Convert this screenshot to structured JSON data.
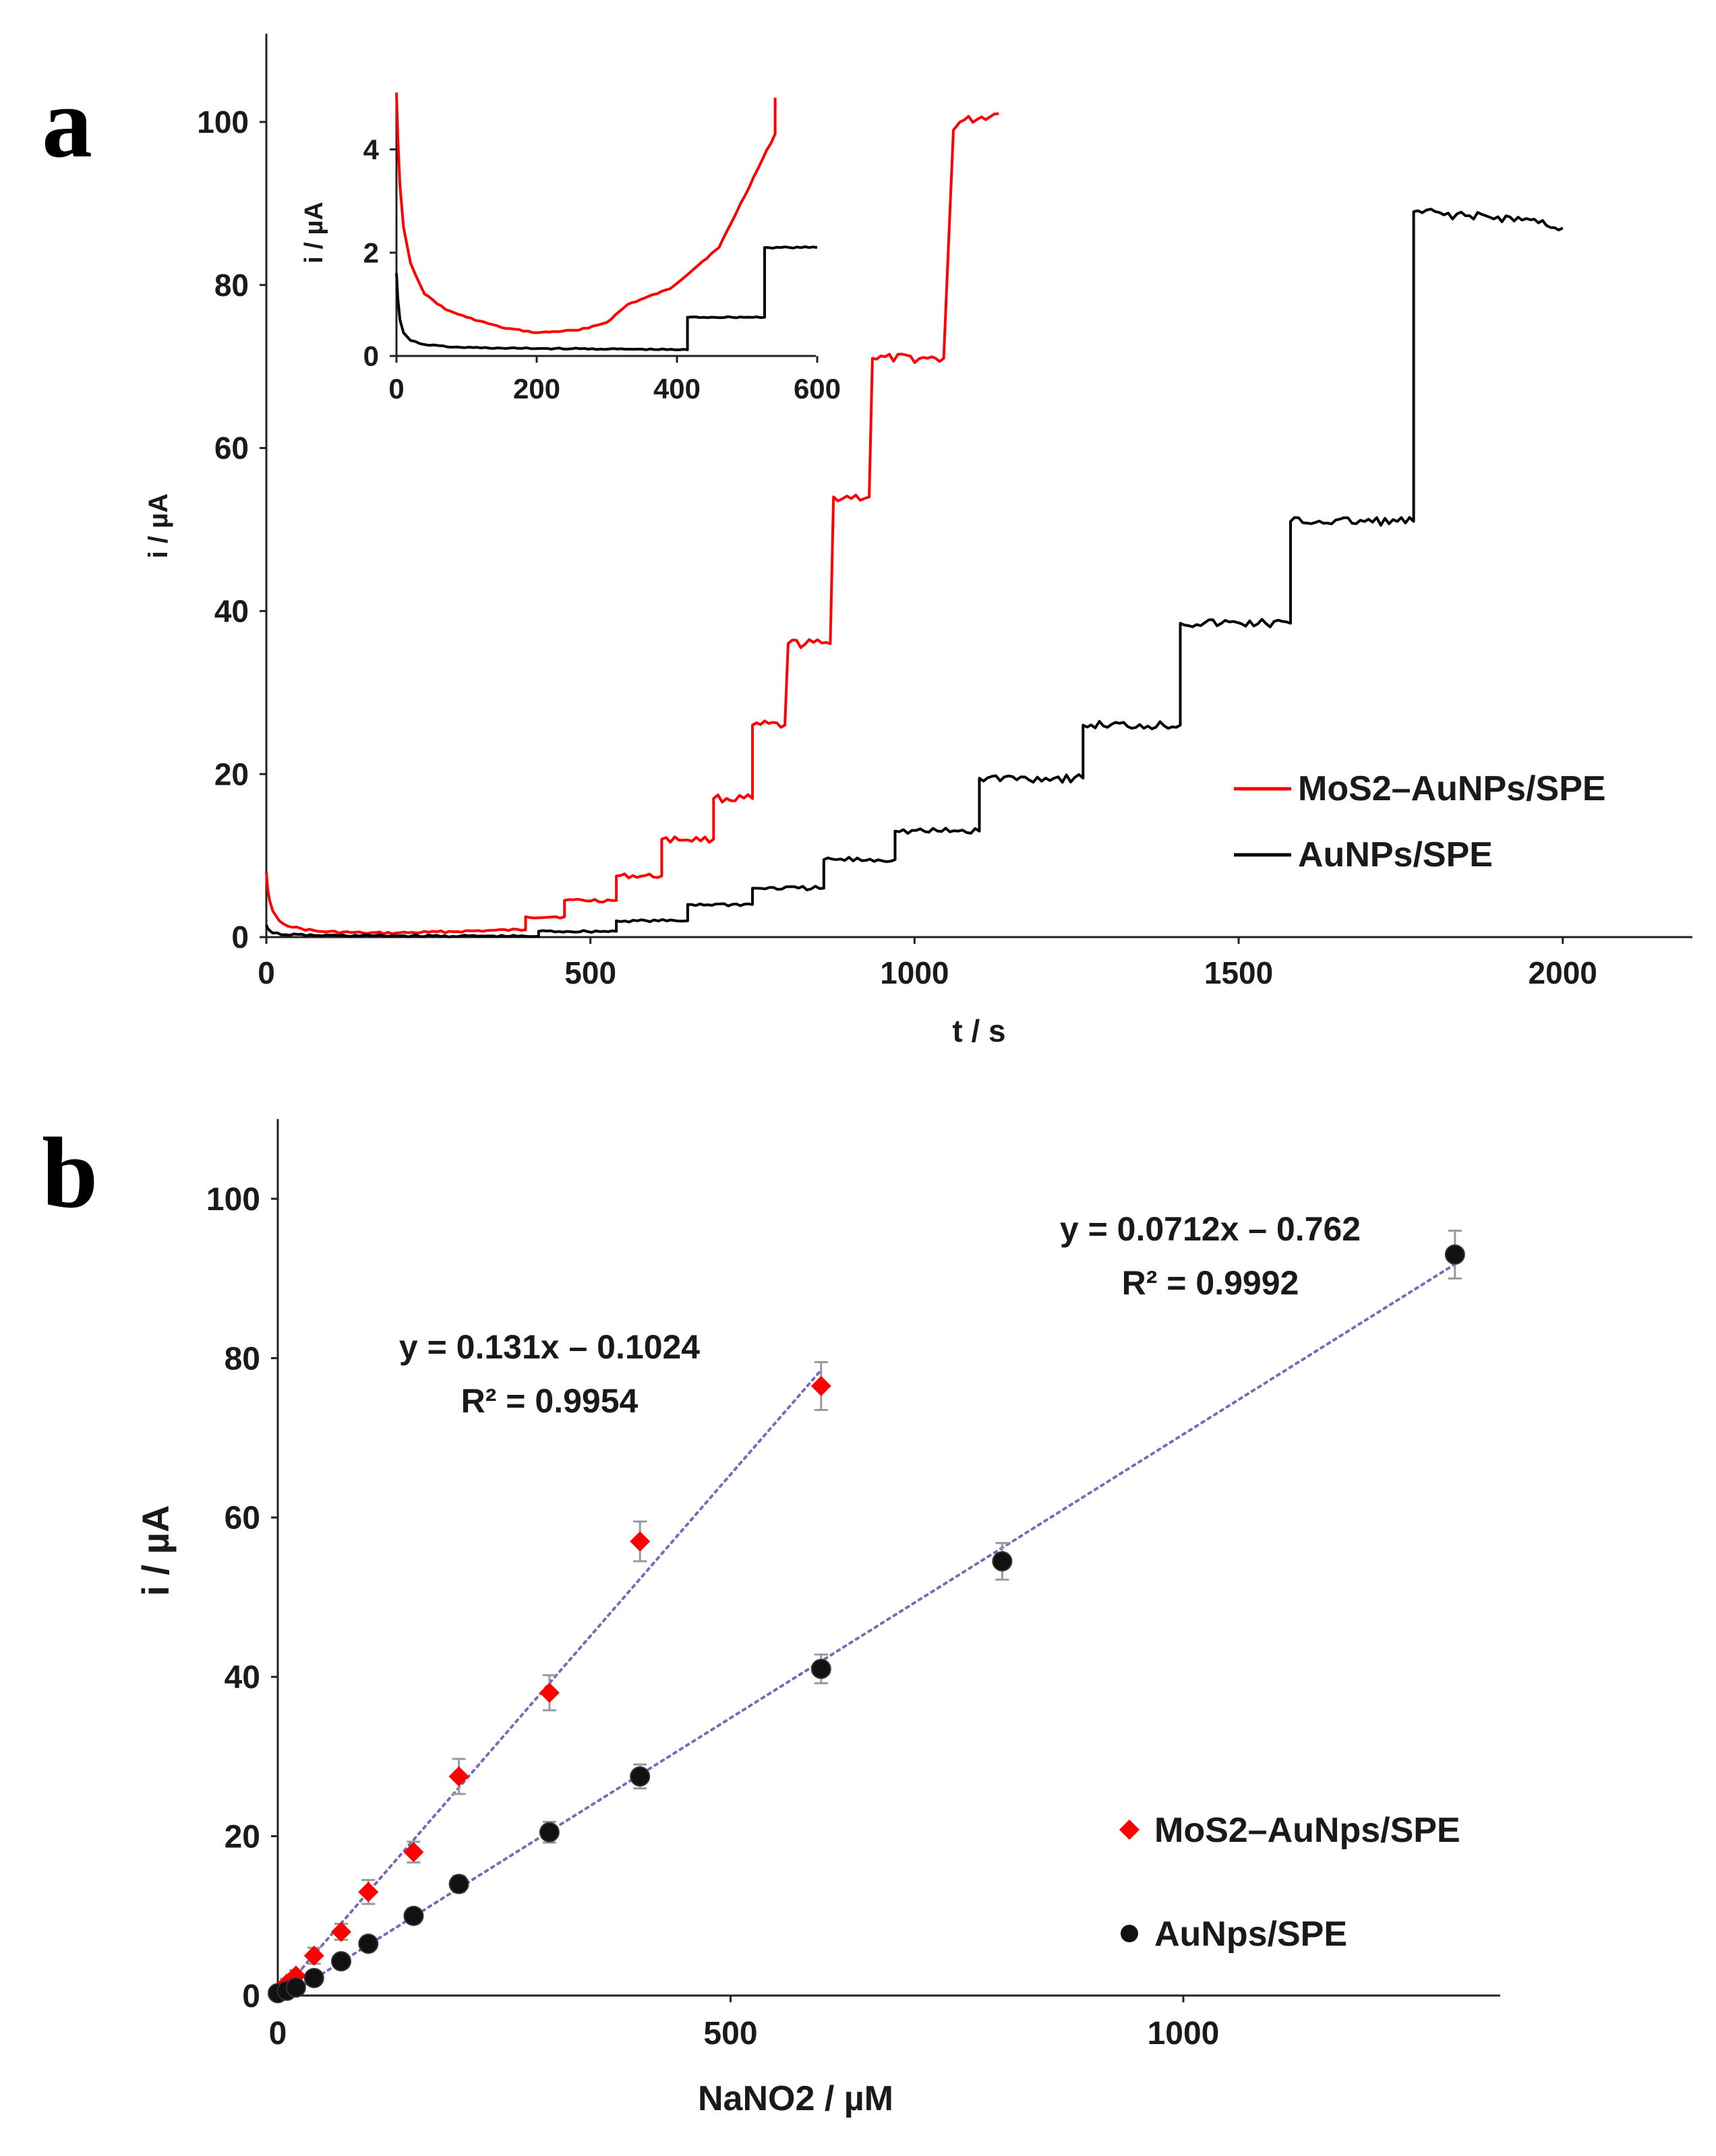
{
  "colors": {
    "red": "#ff0000",
    "black": "#000000",
    "fit": "#7b6bb8",
    "error": "#999999"
  },
  "chart_data": [
    {
      "panel": "a",
      "type": "line",
      "xlabel": "t / s",
      "ylabel": "i / µA",
      "xlim": [
        0,
        2200
      ],
      "ylim": [
        0,
        110
      ],
      "xticks": [
        0,
        500,
        1000,
        1500,
        2000
      ],
      "yticks": [
        0,
        20,
        40,
        60,
        80,
        100
      ],
      "xtick_labels": [
        "0",
        "500",
        "1000",
        "1500",
        "2000"
      ],
      "ytick_labels": [
        "0",
        "20",
        "40",
        "60",
        "80",
        "100"
      ],
      "legend": [
        "MoS2–AuNPs/SPE",
        "AuNPs/SPE"
      ],
      "legend_position": "middle-right",
      "series": [
        {
          "name": "MoS2–AuNPs/SPE",
          "color": "red",
          "x": [
            0,
            2,
            5,
            10,
            20,
            40,
            80,
            150,
            200,
            250,
            340,
            400,
            400,
            460,
            460,
            540,
            540,
            610,
            610,
            690,
            690,
            750,
            750,
            800,
            805,
            870,
            875,
            930,
            935,
            1020,
            1045,
            1060,
            1070,
            1130
          ],
          "y": [
            8,
            6,
            4.5,
            3.2,
            2,
            1.2,
            0.7,
            0.5,
            0.5,
            0.6,
            0.8,
            0.9,
            2.5,
            2.5,
            4.5,
            4.5,
            7.5,
            7.5,
            12,
            12,
            17,
            17,
            26,
            26,
            36,
            36,
            54,
            54,
            71,
            71,
            71,
            99,
            100,
            101
          ]
        },
        {
          "name": "AuNPs/SPE",
          "color": "black",
          "x": [
            0,
            2,
            5,
            10,
            30,
            80,
            200,
            400,
            420,
            420,
            540,
            540,
            650,
            650,
            750,
            750,
            860,
            860,
            970,
            970,
            1100,
            1100,
            1260,
            1260,
            1410,
            1410,
            1580,
            1580,
            1770,
            1770,
            1850,
            1950,
            2000
          ],
          "y": [
            1.5,
            1.1,
            0.8,
            0.5,
            0.3,
            0.2,
            0.15,
            0.1,
            0.1,
            0.7,
            0.7,
            2,
            2,
            4,
            4,
            6,
            6,
            9.5,
            9.5,
            13,
            13,
            19.5,
            19.5,
            26,
            26,
            38.5,
            38.5,
            51,
            51,
            89,
            88.5,
            88,
            87
          ]
        }
      ],
      "inset": {
        "xlabel": "",
        "ylabel": "i / µA",
        "xlim": [
          0,
          600
        ],
        "ylim": [
          0,
          5
        ],
        "xticks": [
          0,
          200,
          400,
          600
        ],
        "yticks": [
          0,
          2,
          4
        ],
        "xtick_labels": [
          "0",
          "200",
          "400",
          "600"
        ],
        "ytick_labels": [
          "0",
          "2",
          "4"
        ],
        "series": [
          {
            "name": "MoS2–AuNPs/SPE",
            "color": "red",
            "x": [
              0,
              2,
              5,
              10,
              20,
              40,
              70,
              100,
              150,
              200,
              200,
              260,
              260,
              300,
              300,
              330,
              330,
              390,
              390,
              460,
              460,
              540,
              540
            ],
            "y": [
              5.1,
              4.2,
              3.3,
              2.5,
              1.8,
              1.2,
              0.9,
              0.75,
              0.55,
              0.45,
              0.45,
              0.5,
              0.5,
              0.65,
              0.65,
              1.0,
              1.0,
              1.3,
              1.3,
              2.1,
              2.1,
              4.3,
              5.0
            ]
          },
          {
            "name": "AuNPs/SPE",
            "color": "black",
            "x": [
              0,
              2,
              5,
              10,
              20,
              40,
              80,
              150,
              250,
              415,
              415,
              525,
              525,
              600
            ],
            "y": [
              1.6,
              1.1,
              0.7,
              0.45,
              0.3,
              0.22,
              0.17,
              0.15,
              0.14,
              0.12,
              0.75,
              0.75,
              2.1,
              2.1
            ]
          }
        ]
      }
    },
    {
      "panel": "b",
      "type": "scatter",
      "xlabel": "NaNO2 / µM",
      "ylabel": "i / µA",
      "xlim": [
        0,
        1350
      ],
      "ylim": [
        0,
        110
      ],
      "xticks": [
        0,
        500,
        1000
      ],
      "yticks": [
        0,
        20,
        40,
        60,
        80,
        100
      ],
      "xtick_labels": [
        "0",
        "500",
        "1000"
      ],
      "ytick_labels": [
        "0",
        "20",
        "40",
        "60",
        "80",
        "100"
      ],
      "legend": [
        "MoS2–AuNps/SPE",
        "AuNps/SPE"
      ],
      "legend_position": "bottom-right",
      "series": [
        {
          "name": "MoS2–AuNps/SPE",
          "marker": "diamond",
          "color": "red",
          "x": [
            0,
            10,
            20,
            40,
            70,
            100,
            150,
            200,
            300,
            400,
            600
          ],
          "y": [
            0.5,
            1.5,
            2.5,
            5,
            8,
            13,
            18,
            27.5,
            38,
            57,
            76.5
          ],
          "err": [
            0.5,
            0.6,
            0.7,
            1,
            1,
            1.5,
            1.3,
            2.2,
            2.2,
            2.5,
            3
          ],
          "fit": {
            "equation": "y = 0.131x – 0.1024",
            "r2": "R² = 0.9954",
            "slope": 0.131,
            "intercept": -0.1024,
            "x_range": [
              0,
              600
            ]
          }
        },
        {
          "name": "AuNps/SPE",
          "marker": "circle",
          "color": "black",
          "x": [
            0,
            10,
            20,
            40,
            70,
            100,
            150,
            200,
            300,
            400,
            600,
            800,
            1300
          ],
          "y": [
            0.3,
            0.6,
            1,
            2.2,
            4.3,
            6.5,
            10,
            14,
            20.5,
            27.5,
            41,
            54.5,
            93
          ],
          "err": [
            0.3,
            0.3,
            0.4,
            0.5,
            0.6,
            0.8,
            0.9,
            1,
            1.3,
            1.5,
            1.8,
            2.3,
            3
          ],
          "fit": {
            "equation": "y = 0.0712x – 0.762",
            "r2": "R² = 0.9992",
            "slope": 0.0712,
            "intercept": -0.762,
            "x_range": [
              0,
              1300
            ]
          }
        }
      ]
    }
  ],
  "panel_labels": {
    "a": "a",
    "b": "b"
  }
}
